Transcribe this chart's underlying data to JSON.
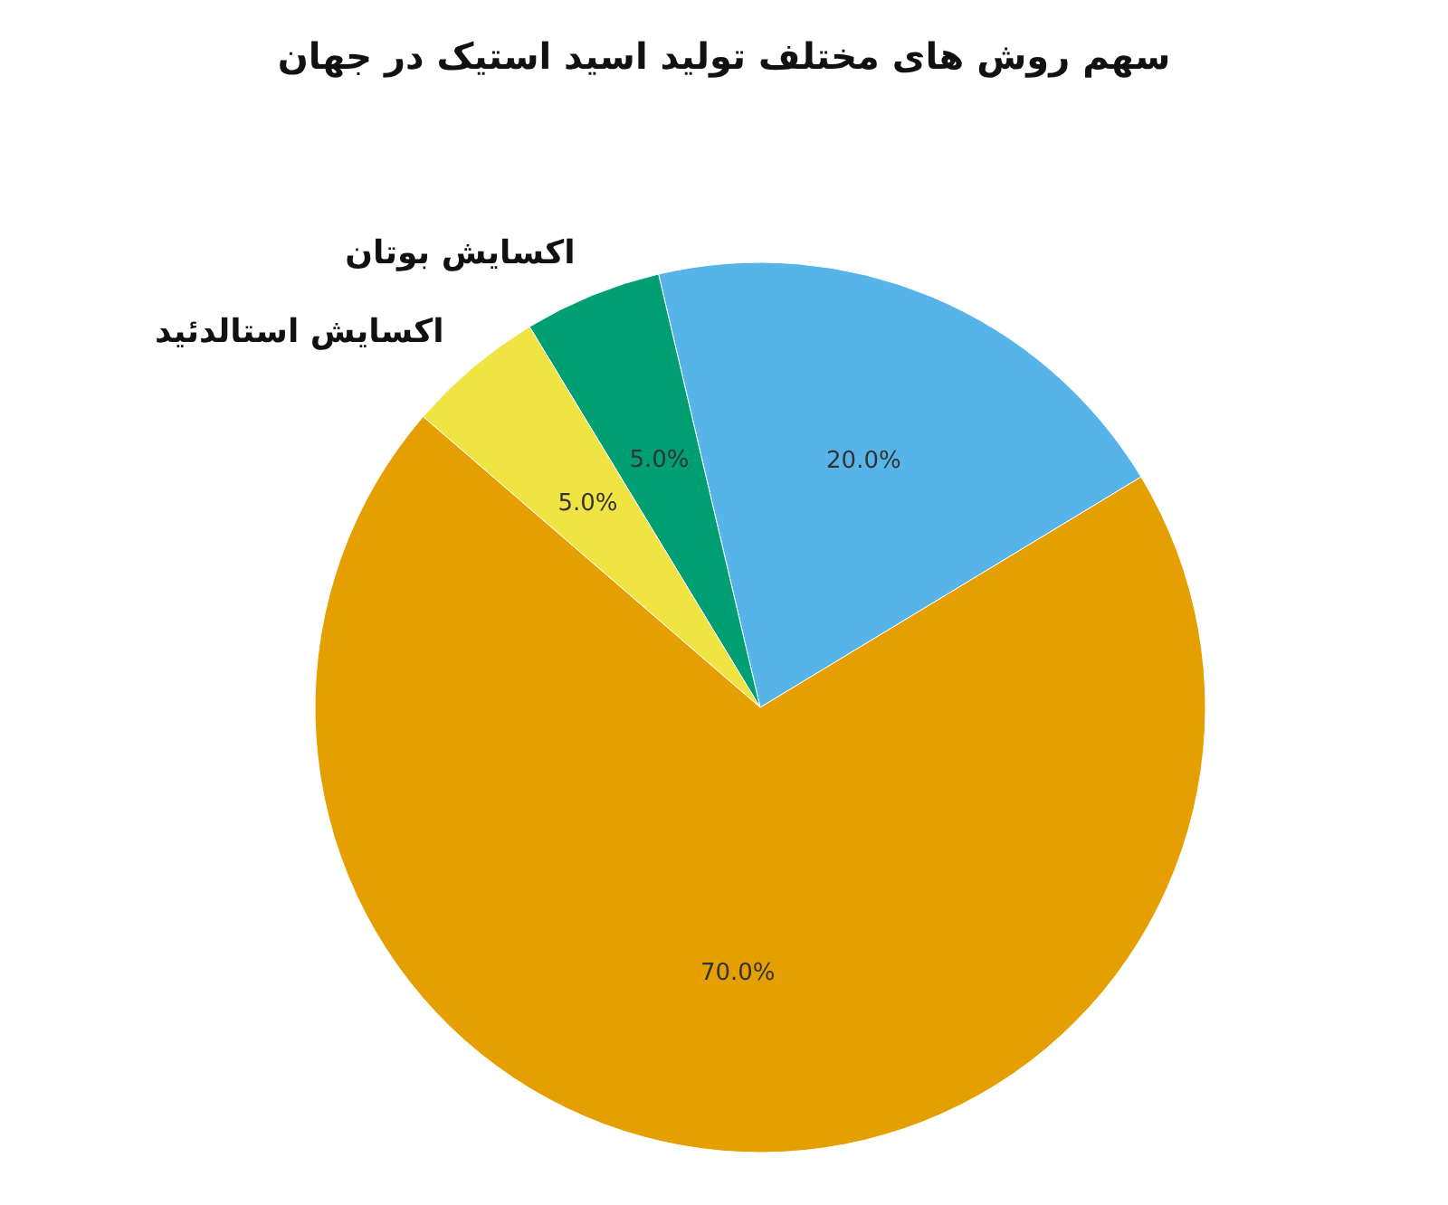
{
  "chart_data": {
    "type": "pie",
    "title": "سهم روش های مختلف تولید اسید استیک در جهان",
    "categories": [
      null,
      "اکسایش بوتان",
      "اکسایش استالدئید",
      null
    ],
    "values": [
      20,
      5,
      5,
      70
    ],
    "colors": [
      "#56b4e9",
      "#009e73",
      "#f0e442",
      "#e69f00"
    ],
    "value_labels": [
      "20.0%",
      "5.0%",
      "5.0%",
      "70.0%"
    ]
  }
}
